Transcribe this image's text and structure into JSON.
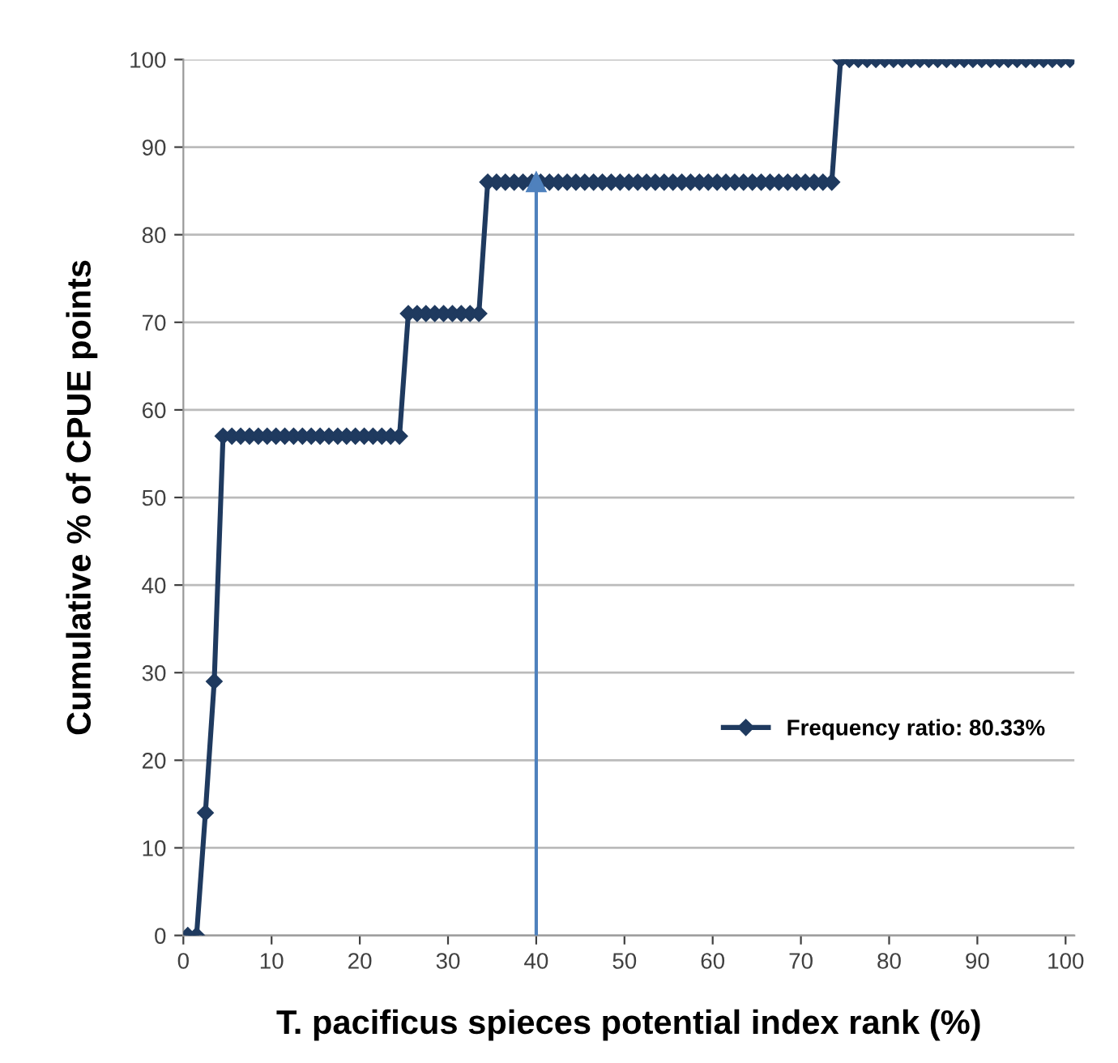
{
  "chart_data": {
    "type": "line",
    "xlabel": "T. pacificus spieces potential index rank (%)",
    "ylabel": "Cumulative % of CPUE points",
    "x": [
      0.5,
      1.5,
      2.5,
      3.5,
      4.5,
      5.5,
      6.5,
      7.5,
      8.5,
      9.5,
      10.5,
      11.5,
      12.5,
      13.5,
      14.5,
      15.5,
      16.5,
      17.5,
      18.5,
      19.5,
      20.5,
      21.5,
      22.5,
      23.5,
      24.5,
      25.5,
      26.5,
      27.5,
      28.5,
      29.5,
      30.5,
      31.5,
      32.5,
      33.5,
      34.5,
      35.5,
      36.5,
      37.5,
      38.5,
      39.5,
      40.5,
      41.5,
      42.5,
      43.5,
      44.5,
      45.5,
      46.5,
      47.5,
      48.5,
      49.5,
      50.5,
      51.5,
      52.5,
      53.5,
      54.5,
      55.5,
      56.5,
      57.5,
      58.5,
      59.5,
      60.5,
      61.5,
      62.5,
      63.5,
      64.5,
      65.5,
      66.5,
      67.5,
      68.5,
      69.5,
      70.5,
      71.5,
      72.5,
      73.5,
      74.5,
      75.5,
      76.5,
      77.5,
      78.5,
      79.5,
      80.5,
      81.5,
      82.5,
      83.5,
      84.5,
      85.5,
      86.5,
      87.5,
      88.5,
      89.5,
      90.5,
      91.5,
      92.5,
      93.5,
      94.5,
      95.5,
      96.5,
      97.5,
      98.5,
      99.5,
      100.5
    ],
    "series": [
      {
        "name": "Frequency ratio: 80.33%",
        "color": "#1f3a5f",
        "values": [
          0,
          0,
          14,
          29,
          57,
          57,
          57,
          57,
          57,
          57,
          57,
          57,
          57,
          57,
          57,
          57,
          57,
          57,
          57,
          57,
          57,
          57,
          57,
          57,
          57,
          71,
          71,
          71,
          71,
          71,
          71,
          71,
          71,
          71,
          86,
          86,
          86,
          86,
          86,
          86,
          86,
          86,
          86,
          86,
          86,
          86,
          86,
          86,
          86,
          86,
          86,
          86,
          86,
          86,
          86,
          86,
          86,
          86,
          86,
          86,
          86,
          86,
          86,
          86,
          86,
          86,
          86,
          86,
          86,
          86,
          86,
          86,
          86,
          86,
          100,
          100,
          100,
          100,
          100,
          100,
          100,
          100,
          100,
          100,
          100,
          100,
          100,
          100,
          100,
          100,
          100,
          100,
          100,
          100,
          100,
          100,
          100,
          100,
          100,
          100,
          100
        ]
      },
      {
        "type": "line",
        "x": [
          40,
          40
        ],
        "values": [
          0,
          86
        ],
        "color": "#4f81bd",
        "marker": "triangle"
      }
    ],
    "xlim": [
      0,
      101
    ],
    "xticks": [
      0,
      10,
      20,
      30,
      40,
      50,
      60,
      70,
      80,
      90,
      100
    ],
    "ylim": [
      0,
      100
    ],
    "yticks": [
      0,
      10,
      20,
      30,
      40,
      50,
      60,
      70,
      80,
      90,
      100
    ],
    "grid": "y",
    "legend": "bottom right",
    "marker": "diamond",
    "line_style": "solid"
  }
}
